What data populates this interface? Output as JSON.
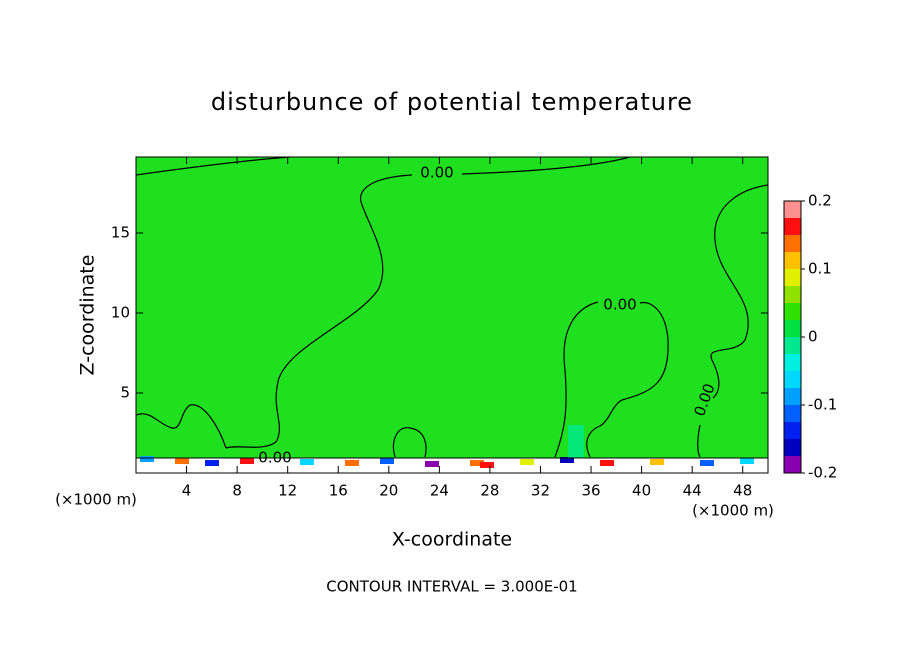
{
  "chart_data": {
    "type": "contour",
    "title": "disturbunce of potential temperature",
    "x_label": "X-coordinate",
    "y_label": "Z-coordinate",
    "x_unit_left": "(×1000 m)",
    "x_unit_right": "(×1000 m)",
    "footer": "CONTOUR INTERVAL = 3.000E-01",
    "xlim": [
      0,
      50
    ],
    "xticks": [
      4,
      8,
      12,
      16,
      20,
      24,
      28,
      32,
      36,
      40,
      44,
      48
    ],
    "ylim": [
      0,
      19.75
    ],
    "yticks": [
      5,
      10,
      15
    ],
    "field_color": "#1ee01e",
    "contour_labels": [
      "0.00",
      "0.00",
      "0.00",
      "0.00"
    ],
    "colorbar": {
      "lim": [
        -0.2,
        0.2
      ],
      "ticks": [
        -0.2,
        -0.1,
        0,
        0.1,
        0.2
      ],
      "levels": [
        -0.2,
        -0.175,
        -0.15,
        -0.125,
        -0.1,
        -0.075,
        -0.05,
        -0.025,
        0,
        0.025,
        0.05,
        0.075,
        0.1,
        0.125,
        0.15,
        0.175,
        0.2
      ],
      "colors": [
        "#8a00b0",
        "#0000c0",
        "#0020f0",
        "#0060ff",
        "#00a0ff",
        "#00d8ff",
        "#00f0e0",
        "#00e890",
        "#00e040",
        "#30e000",
        "#90e000",
        "#e0f000",
        "#ffc000",
        "#ff7000",
        "#ff1010",
        "#ff9090"
      ]
    }
  }
}
